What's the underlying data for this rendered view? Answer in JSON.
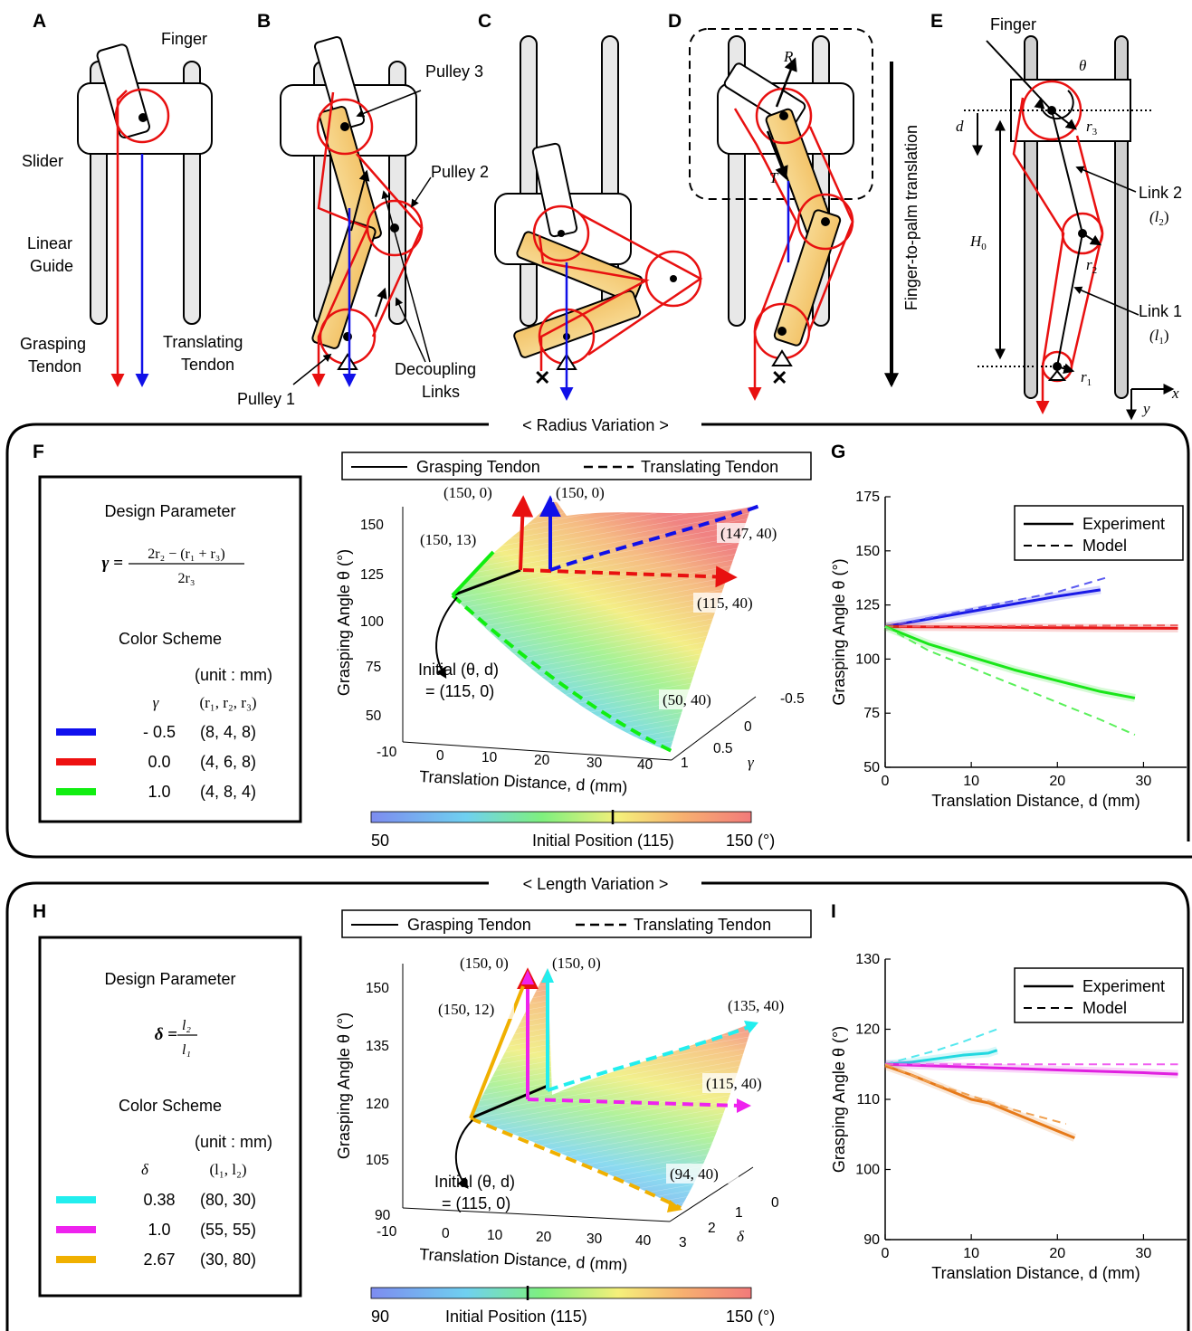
{
  "panels": {
    "a": "A",
    "b": "B",
    "c": "C",
    "d": "D",
    "e": "E",
    "f": "F",
    "g": "G",
    "h": "H",
    "i": "I"
  },
  "diagram_a": {
    "finger": "Finger",
    "slider": "Slider",
    "linear_guide_1": "Linear",
    "linear_guide_2": "Guide",
    "grasping_1": "Grasping",
    "grasping_2": "Tendon",
    "translating_1": "Translating",
    "translating_2": "Tendon"
  },
  "diagram_b": {
    "pulley3": "Pulley 3",
    "pulley2": "Pulley 2",
    "pulley1": "Pulley 1",
    "decoupling_1": "Decoupling",
    "decoupling_2": "Links"
  },
  "diagram_d": {
    "R": "R",
    "T": "T",
    "translation": "Finger-to-palm translation"
  },
  "diagram_e": {
    "finger": "Finger",
    "theta": "θ",
    "d": "d",
    "r3": "r",
    "r3_sub": "3",
    "link2": "Link 2",
    "link2_sym": "(l",
    "link2_sub": "2",
    "r2": "r",
    "r2_sub": "2",
    "H0": "H",
    "H0_sub": "0",
    "link1": "Link 1",
    "link1_sym": "(l",
    "link1_sub": "1",
    "r1": "r",
    "r1_sub": "1",
    "x": "x",
    "y": "y"
  },
  "section_radius": "< Radius Variation >",
  "section_length": "< Length Variation >",
  "panel_f": {
    "design_param": "Design Parameter",
    "formula_lhs": "γ =",
    "formula_num": "2r₂ − (r₁ + r₃)",
    "formula_den": "2r₃",
    "color_scheme": "Color Scheme",
    "unit": "(unit : mm)",
    "col1": "γ",
    "col2": "(r₁, r₂, r₃)",
    "rows": [
      {
        "color": "#1010ee",
        "val": "- 0.5",
        "tuple": "(8, 4, 8)"
      },
      {
        "color": "#ee1111",
        "val": "0.0",
        "tuple": "(4, 6, 8)"
      },
      {
        "color": "#11ee11",
        "val": "1.0",
        "tuple": "(4, 8, 4)"
      }
    ]
  },
  "panel_h": {
    "design_param": "Design Parameter",
    "formula_lhs": "δ =",
    "formula_num": "l₂",
    "formula_den": "l₁",
    "color_scheme": "Color Scheme",
    "unit": "(unit : mm)",
    "col1": "δ",
    "col2": "(l₁, l₂)",
    "rows": [
      {
        "color": "#22eeee",
        "val": "0.38",
        "tuple": "(80, 30)"
      },
      {
        "color": "#ee22ee",
        "val": "1.0",
        "tuple": "(55, 55)"
      },
      {
        "color": "#f0b000",
        "val": "2.67",
        "tuple": "(30, 80)"
      }
    ]
  },
  "surface_f": {
    "legend_solid": "Grasping Tendon",
    "legend_dash": "Translating Tendon",
    "ylabel": "Grasping Angle θ (°)",
    "xlabel": "Translation Distance, d (mm)",
    "zlabel": "γ",
    "yticks": [
      "50",
      "75",
      "100",
      "125",
      "150"
    ],
    "xticks": [
      "-10",
      "0",
      "10",
      "20",
      "30",
      "40"
    ],
    "zticks": [
      "-0.5",
      "0",
      "0.5",
      "1"
    ],
    "ann": [
      "(150, 0)",
      "(150, 0)",
      "(150, 13)",
      "(147, 40)",
      "(115, 40)",
      "(50, 40)"
    ],
    "initial_1": "Initial (θ, d)",
    "initial_2": "= (115, 0)",
    "cbar_min": "50",
    "cbar_mid": "Initial Position (115)",
    "cbar_max": "150 (°)"
  },
  "surface_h": {
    "legend_solid": "Grasping Tendon",
    "legend_dash": "Translating Tendon",
    "ylabel": "Grasping Angle θ (°)",
    "xlabel": "Translation Distance, d (mm)",
    "zlabel": "δ",
    "yticks": [
      "90",
      "105",
      "120",
      "135",
      "150"
    ],
    "xticks": [
      "-10",
      "0",
      "10",
      "20",
      "30",
      "40"
    ],
    "zticks": [
      "0",
      "1",
      "2",
      "3"
    ],
    "ann": [
      "(150, 0)",
      "(150, 0)",
      "(150, 12)",
      "(135, 40)",
      "(115, 40)",
      "(94, 40)"
    ],
    "initial_1": "Initial (θ, d)",
    "initial_2": "= (115, 0)",
    "cbar_min": "90",
    "cbar_mid": "Initial Position (115)",
    "cbar_max": "150 (°)"
  },
  "chart_data": [
    {
      "type": "line",
      "panel": "G",
      "xlabel": "Translation Distance, d (mm)",
      "ylabel": "Grasping Angle θ (°)",
      "xlim": [
        0,
        35
      ],
      "ylim": [
        50,
        175
      ],
      "xticks": [
        0,
        10,
        20,
        30
      ],
      "yticks": [
        50,
        75,
        100,
        125,
        150,
        175
      ],
      "legend": [
        "Experiment",
        "Model"
      ],
      "legend_position": "top-right",
      "series": [
        {
          "style": "solid",
          "color": "#1a1ae6",
          "x": [
            0,
            5,
            10,
            15,
            20,
            25
          ],
          "y": [
            115,
            118.5,
            122,
            125.5,
            129,
            132
          ]
        },
        {
          "style": "dashed",
          "color": "#5a5af0",
          "x": [
            0,
            5,
            10,
            15,
            20,
            26
          ],
          "y": [
            115,
            119,
            123,
            127,
            131,
            138
          ]
        },
        {
          "style": "solid",
          "color": "#e61a1a",
          "x": [
            0,
            10,
            20,
            29,
            34
          ],
          "y": [
            115,
            114.8,
            114.5,
            114.3,
            114.2
          ]
        },
        {
          "style": "dashed",
          "color": "#f06060",
          "x": [
            0,
            10,
            20,
            34
          ],
          "y": [
            115,
            115.2,
            115.4,
            115.6
          ]
        },
        {
          "style": "solid",
          "color": "#1ae61a",
          "x": [
            0,
            5,
            10,
            15,
            20,
            25,
            29
          ],
          "y": [
            115,
            107,
            101,
            95,
            90,
            85,
            82
          ]
        },
        {
          "style": "dashed",
          "color": "#5af05a",
          "x": [
            0,
            5,
            10,
            15,
            20,
            25,
            29
          ],
          "y": [
            115,
            104,
            96,
            88,
            80,
            72,
            65
          ]
        }
      ]
    },
    {
      "type": "line",
      "panel": "I",
      "xlabel": "Translation Distance, d (mm)",
      "ylabel": "Grasping Angle θ (°)",
      "xlim": [
        0,
        35
      ],
      "ylim": [
        90,
        130
      ],
      "xticks": [
        0,
        10,
        20,
        30
      ],
      "yticks": [
        90,
        100,
        110,
        120,
        130
      ],
      "legend": [
        "Experiment",
        "Model"
      ],
      "legend_position": "top-right",
      "series": [
        {
          "style": "solid",
          "color": "#22d8e0",
          "x": [
            0,
            3,
            6,
            9,
            12,
            13
          ],
          "y": [
            115,
            115.3,
            115.8,
            116.3,
            116.6,
            117
          ]
        },
        {
          "style": "dashed",
          "color": "#55e8ee",
          "x": [
            0,
            3,
            6,
            9,
            13
          ],
          "y": [
            115,
            116,
            117,
            118.2,
            120
          ]
        },
        {
          "style": "solid",
          "color": "#e020e0",
          "x": [
            0,
            10,
            20,
            30,
            34
          ],
          "y": [
            115,
            114.6,
            114.2,
            113.8,
            113.6
          ]
        },
        {
          "style": "dashed",
          "color": "#f060f0",
          "x": [
            0,
            10,
            20,
            34
          ],
          "y": [
            115,
            115,
            115,
            115
          ]
        },
        {
          "style": "solid",
          "color": "#e67a1a",
          "x": [
            0,
            3,
            5,
            8,
            10,
            12,
            14,
            16,
            18,
            20,
            22
          ],
          "y": [
            114.8,
            113.5,
            112.5,
            111,
            110,
            109.5,
            108.5,
            107.5,
            106.5,
            105.5,
            104.5
          ]
        },
        {
          "style": "dashed",
          "color": "#f0a050",
          "x": [
            0,
            5,
            10,
            15,
            21
          ],
          "y": [
            115,
            112.5,
            110.5,
            108.5,
            106.5
          ]
        }
      ]
    }
  ]
}
